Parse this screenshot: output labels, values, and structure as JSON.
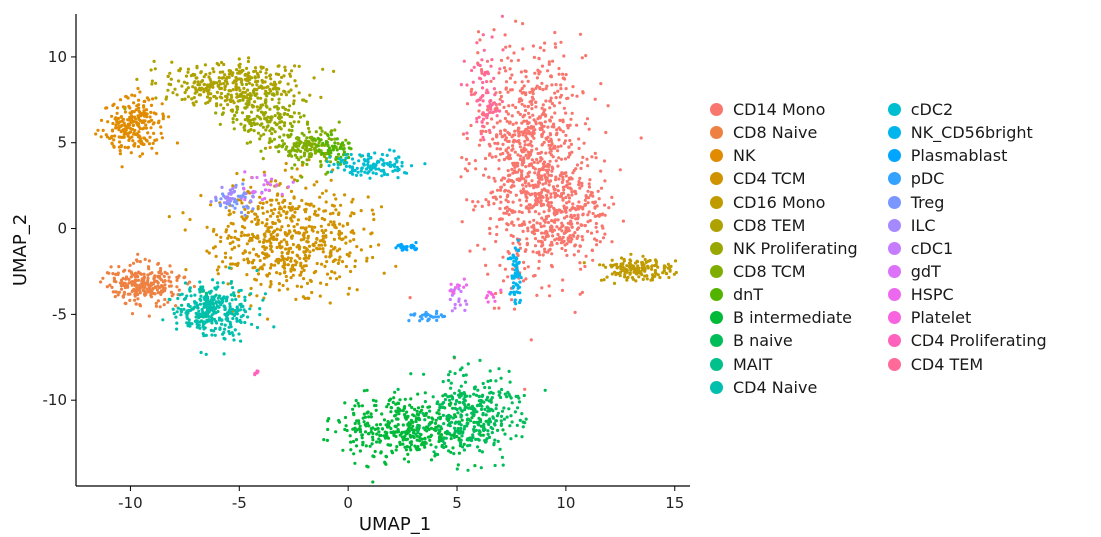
{
  "chart_data": {
    "type": "scatter",
    "title": "",
    "xlabel": "UMAP_1",
    "ylabel": "UMAP_2",
    "xlim": [
      -12.5,
      15.7
    ],
    "ylim": [
      -15,
      12.5
    ],
    "x_ticks": [
      -10,
      -5,
      0,
      5,
      10,
      15
    ],
    "y_ticks": [
      -10,
      -5,
      0,
      5,
      10
    ],
    "x_tick_labels": [
      "-10",
      "-5",
      "0",
      "5",
      "10",
      "15"
    ],
    "y_tick_labels": [
      "-10",
      "-5",
      "0",
      "5",
      "10"
    ],
    "grid": false,
    "legend_position": "right",
    "series": [
      {
        "name": "CD14 Mono",
        "color": "#F8766D",
        "clusters": [
          {
            "cx": 8.4,
            "cy": 4.0,
            "sx": 1.3,
            "sy": 3.3,
            "n": 900
          },
          {
            "cx": 10.2,
            "cy": 0.6,
            "sx": 0.9,
            "sy": 1.3,
            "n": 220
          }
        ]
      },
      {
        "name": "CD8 Naive",
        "color": "#EE8042",
        "clusters": [
          {
            "cx": -9.4,
            "cy": -3.2,
            "sx": 0.8,
            "sy": 0.6,
            "n": 250
          }
        ]
      },
      {
        "name": "NK",
        "color": "#E08B00",
        "clusters": [
          {
            "cx": -9.8,
            "cy": 6.0,
            "sx": 0.7,
            "sy": 0.8,
            "n": 230
          }
        ]
      },
      {
        "name": "CD4 TCM",
        "color": "#D19200",
        "clusters": [
          {
            "cx": -2.8,
            "cy": -0.6,
            "sx": 1.7,
            "sy": 1.6,
            "n": 600
          }
        ]
      },
      {
        "name": "CD16 Mono",
        "color": "#C09B00",
        "clusters": [
          {
            "cx": 13.2,
            "cy": -2.4,
            "sx": 0.8,
            "sy": 0.35,
            "n": 160
          }
        ]
      },
      {
        "name": "CD8 TEM",
        "color": "#AEA200",
        "clusters": [
          {
            "cx": -5.5,
            "cy": 8.3,
            "sx": 1.6,
            "sy": 0.7,
            "n": 330
          }
        ]
      },
      {
        "name": "NK Proliferating",
        "color": "#99A800",
        "clusters": [
          {
            "cx": -3.8,
            "cy": 6.5,
            "sx": 0.8,
            "sy": 0.8,
            "n": 180
          }
        ]
      },
      {
        "name": "CD8 TCM",
        "color": "#7FAE00",
        "clusters": [
          {
            "cx": -1.8,
            "cy": 4.8,
            "sx": 0.7,
            "sy": 0.6,
            "n": 160
          }
        ]
      },
      {
        "name": "dnT",
        "color": "#53B400",
        "clusters": [
          {
            "cx": -0.6,
            "cy": 4.6,
            "sx": 0.4,
            "sy": 0.4,
            "n": 50
          }
        ]
      },
      {
        "name": "B intermediate",
        "color": "#00B938",
        "clusters": [
          {
            "cx": 2.5,
            "cy": -11.6,
            "sx": 1.6,
            "sy": 0.9,
            "n": 400
          }
        ]
      },
      {
        "name": "B naive",
        "color": "#00BC59",
        "clusters": [
          {
            "cx": 5.8,
            "cy": -10.8,
            "sx": 1.1,
            "sy": 1.2,
            "n": 330
          }
        ]
      },
      {
        "name": "MAIT",
        "color": "#00C08B",
        "clusters": [
          {
            "cx": -6.4,
            "cy": -4.6,
            "sx": 0.5,
            "sy": 0.5,
            "n": 50
          }
        ]
      },
      {
        "name": "CD4 Naive",
        "color": "#00BFAD",
        "clusters": [
          {
            "cx": -6.2,
            "cy": -4.8,
            "sx": 0.9,
            "sy": 0.8,
            "n": 280
          }
        ]
      },
      {
        "name": "cDC2",
        "color": "#00BDD0",
        "clusters": [
          {
            "cx": 1.2,
            "cy": 3.7,
            "sx": 0.9,
            "sy": 0.4,
            "n": 120
          }
        ]
      },
      {
        "name": "NK_CD56bright",
        "color": "#00B5EE",
        "clusters": [
          {
            "cx": 7.7,
            "cy": -2.8,
            "sx": 0.15,
            "sy": 0.8,
            "n": 70
          }
        ]
      },
      {
        "name": "Plasmablast",
        "color": "#00A5FF",
        "clusters": [
          {
            "cx": 2.7,
            "cy": -1.1,
            "sx": 0.25,
            "sy": 0.12,
            "n": 25
          }
        ]
      },
      {
        "name": "pDC",
        "color": "#35A2FF",
        "clusters": [
          {
            "cx": 3.6,
            "cy": -5.1,
            "sx": 0.4,
            "sy": 0.15,
            "n": 30
          }
        ]
      },
      {
        "name": "Treg",
        "color": "#7997FF",
        "clusters": [
          {
            "cx": -5.2,
            "cy": 1.6,
            "sx": 0.5,
            "sy": 0.4,
            "n": 40
          }
        ]
      },
      {
        "name": "ILC",
        "color": "#A58AFF",
        "clusters": [
          {
            "cx": -5.3,
            "cy": 1.9,
            "sx": 0.4,
            "sy": 0.3,
            "n": 25
          }
        ]
      },
      {
        "name": "cDC1",
        "color": "#C67CFF",
        "clusters": [
          {
            "cx": 4.9,
            "cy": -4.0,
            "sx": 0.3,
            "sy": 0.3,
            "n": 15
          }
        ]
      },
      {
        "name": "gdT",
        "color": "#DC71FA",
        "clusters": [
          {
            "cx": -3.8,
            "cy": 2.2,
            "sx": 0.5,
            "sy": 0.4,
            "n": 25
          }
        ]
      },
      {
        "name": "HSPC",
        "color": "#EC69EF",
        "clusters": [
          {
            "cx": 5.0,
            "cy": -3.4,
            "sx": 0.2,
            "sy": 0.2,
            "n": 12
          }
        ]
      },
      {
        "name": "Platelet",
        "color": "#F863DF",
        "clusters": [
          {
            "cx": 6.5,
            "cy": -3.8,
            "sx": 0.2,
            "sy": 0.2,
            "n": 10
          }
        ]
      },
      {
        "name": "CD4 Proliferating",
        "color": "#FF62BC",
        "clusters": [
          {
            "cx": -4.2,
            "cy": -8.4,
            "sx": 0.1,
            "sy": 0.1,
            "n": 6
          }
        ]
      },
      {
        "name": "CD4 TEM",
        "color": "#FF6A98",
        "clusters": [
          {
            "cx": 6.3,
            "cy": 8.0,
            "sx": 0.4,
            "sy": 1.5,
            "n": 80
          }
        ]
      }
    ]
  }
}
